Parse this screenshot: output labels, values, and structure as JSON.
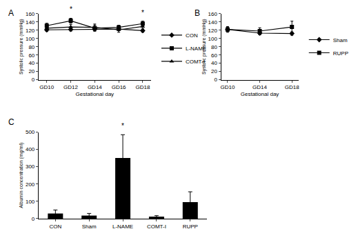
{
  "chart_data": [
    {
      "type": "line",
      "title": "A",
      "x_label": "Gestational day",
      "y_label": "Systolic pressure (mmHg)",
      "categories": [
        "GD10",
        "GD12",
        "GD14",
        "GD16",
        "GD18"
      ],
      "ylim": [
        0,
        160
      ],
      "yticks": [
        0,
        20,
        40,
        60,
        80,
        100,
        120,
        140,
        160
      ],
      "series": [
        {
          "name": "CON",
          "color": "#000000",
          "marker": "diamond",
          "values": [
            121,
            122,
            123,
            123,
            119
          ],
          "errors": [
            4,
            4,
            5,
            4,
            4
          ]
        },
        {
          "name": "L-NAME",
          "color": "#000000",
          "marker": "square",
          "values": [
            131,
            143,
            125,
            127,
            136
          ],
          "errors": [
            6,
            6,
            7,
            5,
            6
          ]
        },
        {
          "name": "COMT-I",
          "color": "#000000",
          "marker": "triangle",
          "values": [
            125,
            128,
            127,
            121,
            129
          ],
          "errors": [
            5,
            6,
            8,
            6,
            6
          ]
        }
      ],
      "annotations": [
        {
          "x": "GD12",
          "series": "L-NAME",
          "text": "*"
        },
        {
          "x": "GD18",
          "series": "L-NAME",
          "text": "*"
        }
      ]
    },
    {
      "type": "line",
      "title": "B",
      "x_label": "Gestational day",
      "y_label": "Systolic pressure (mmHg)",
      "categories": [
        "GD10",
        "GD14",
        "GD18"
      ],
      "ylim": [
        0,
        160
      ],
      "yticks": [
        0,
        20,
        40,
        60,
        80,
        100,
        120,
        140,
        160
      ],
      "series": [
        {
          "name": "Sham",
          "color": "#000000",
          "marker": "diamond",
          "values": [
            122,
            113,
            112
          ],
          "errors": [
            5,
            4,
            4
          ]
        },
        {
          "name": "RUPP",
          "color": "#000000",
          "marker": "square",
          "values": [
            122,
            118,
            128
          ],
          "errors": [
            7,
            8,
            14
          ]
        }
      ]
    },
    {
      "type": "bar",
      "title": "C",
      "y_label": "Albumin concentration (mg/ml)",
      "categories": [
        "CON",
        "Sham",
        "L-NAME",
        "COMT-I",
        "RUPP"
      ],
      "values": [
        30,
        18,
        350,
        12,
        95
      ],
      "errors": [
        20,
        12,
        135,
        5,
        60
      ],
      "color": "#000000",
      "ylim": [
        0,
        500
      ],
      "yticks": [
        0,
        100,
        200,
        300,
        400,
        500
      ],
      "annotations": [
        {
          "x": "L-NAME",
          "text": "*"
        }
      ]
    }
  ]
}
